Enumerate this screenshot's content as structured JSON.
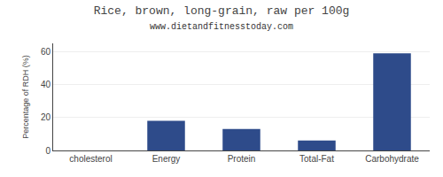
{
  "chart_data": {
    "type": "bar",
    "title": "Rice, brown, long-grain, raw per 100g",
    "subtitle": "www.dietandfitnesstoday.com",
    "categories": [
      "cholesterol",
      "Energy",
      "Protein",
      "Total-Fat",
      "Carbohydrate"
    ],
    "values": [
      0,
      18,
      13,
      6,
      59
    ],
    "color": "#2e4b8a",
    "ylabel": "Percentage of RDH (%)",
    "ylim": [
      0,
      65
    ],
    "yticks": [
      0,
      20,
      40,
      60
    ],
    "grid": true
  }
}
